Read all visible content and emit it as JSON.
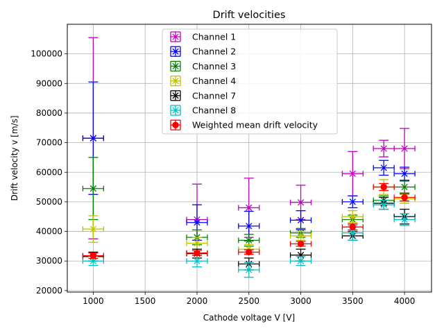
{
  "chart_data": {
    "type": "scatter",
    "title": "Drift velocities",
    "xlabel": "Cathode voltage V [V]",
    "ylabel": "Drift velocity v [m/s]",
    "xlim": [
      750,
      4260
    ],
    "ylim": [
      19500,
      110000
    ],
    "x_ticks": [
      1000,
      1500,
      2000,
      2500,
      3000,
      3500,
      4000
    ],
    "y_ticks": [
      20000,
      30000,
      40000,
      50000,
      60000,
      70000,
      80000,
      90000,
      100000
    ],
    "grid": true,
    "legend_position": "top-center",
    "x_error": 100,
    "series": [
      {
        "name": "Channel 1",
        "color": "#bf00bf",
        "marker": "x",
        "x": [
          1000,
          2000,
          2500,
          3000,
          3500,
          3800,
          4000
        ],
        "y": [
          71500,
          44000,
          48000,
          49800,
          59500,
          68000,
          68000
        ],
        "y_err": [
          34000,
          12000,
          10000,
          5800,
          7500,
          2800,
          6800
        ]
      },
      {
        "name": "Channel 2",
        "color": "#0000ff",
        "marker": "x",
        "x": [
          1000,
          2000,
          2500,
          3000,
          3500,
          3800,
          4000
        ],
        "y": [
          71500,
          43000,
          41800,
          43800,
          50000,
          61500,
          59500
        ],
        "y_err": [
          19000,
          6000,
          5000,
          3200,
          2000,
          2500,
          2200
        ]
      },
      {
        "name": "Channel 3",
        "color": "#008000",
        "marker": "x",
        "x": [
          1000,
          2000,
          2500,
          3000,
          3500,
          3800,
          4000
        ],
        "y": [
          54500,
          38000,
          37000,
          39500,
          44000,
          50500,
          55000
        ],
        "y_err": [
          10500,
          2500,
          2000,
          1500,
          1500,
          1500,
          2000
        ]
      },
      {
        "name": "Channel 4",
        "color": "#bfbf00",
        "marker": "x",
        "x": [
          1000,
          2000,
          2500,
          3000,
          3500,
          3800,
          4000
        ],
        "y": [
          40800,
          36000,
          34000,
          38500,
          45000,
          55000,
          51000
        ],
        "y_err": [
          4500,
          2000,
          1500,
          1500,
          2000,
          2500,
          1500
        ]
      },
      {
        "name": "Channel 7",
        "color": "#000000",
        "marker": "x",
        "x": [
          1000,
          2000,
          2500,
          3000,
          3500,
          3800,
          4000
        ],
        "y": [
          31500,
          32500,
          29000,
          32000,
          38500,
          49500,
          45000
        ],
        "y_err": [
          1500,
          1500,
          2000,
          2000,
          1500,
          2000,
          2500
        ]
      },
      {
        "name": "Channel 8",
        "color": "#00bfbf",
        "marker": "x",
        "x": [
          1000,
          2000,
          2500,
          3000,
          3500,
          3800,
          4000
        ],
        "y": [
          30000,
          30000,
          27000,
          30000,
          39500,
          49000,
          44000
        ],
        "y_err": [
          1500,
          2000,
          2500,
          1500,
          2500,
          1500,
          2000
        ]
      },
      {
        "name": "Weighted mean drift velocity",
        "color": "#ff0000",
        "marker": "o",
        "x": [
          1000,
          2000,
          2500,
          3000,
          3500,
          3800,
          4000
        ],
        "y": [
          31800,
          32700,
          33000,
          35800,
          41500,
          55000,
          51500
        ],
        "y_err": [
          900,
          800,
          800,
          800,
          1000,
          1200,
          1200
        ]
      }
    ]
  }
}
